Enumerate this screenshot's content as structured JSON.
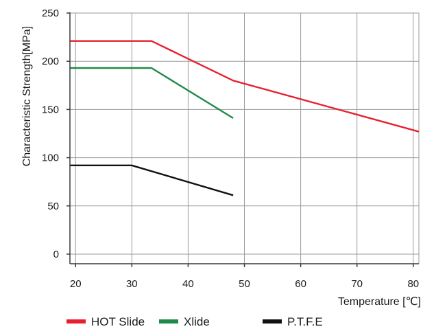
{
  "chart_data": {
    "type": "line",
    "title": "",
    "xlabel": "Temperature [℃]",
    "ylabel": "Characteristic Strength[MPa]",
    "xlim": [
      19,
      81
    ],
    "ylim": [
      -10,
      250
    ],
    "xticks": [
      20,
      30,
      40,
      50,
      60,
      70,
      80
    ],
    "yticks": [
      0,
      50,
      100,
      150,
      200,
      250
    ],
    "grid": true,
    "legend_position": "bottom",
    "series": [
      {
        "name": "HOT Slide",
        "color": "#e8202e",
        "x": [
          19,
          33.5,
          48,
          81
        ],
        "y": [
          221,
          221,
          180,
          127
        ]
      },
      {
        "name": "Xlide",
        "color": "#1f8a4a",
        "x": [
          19,
          33.5,
          48
        ],
        "y": [
          193,
          193,
          141
        ]
      },
      {
        "name": "P.T.F.E",
        "color": "#111111",
        "x": [
          19,
          30,
          48
        ],
        "y": [
          92,
          92,
          61
        ]
      }
    ]
  }
}
